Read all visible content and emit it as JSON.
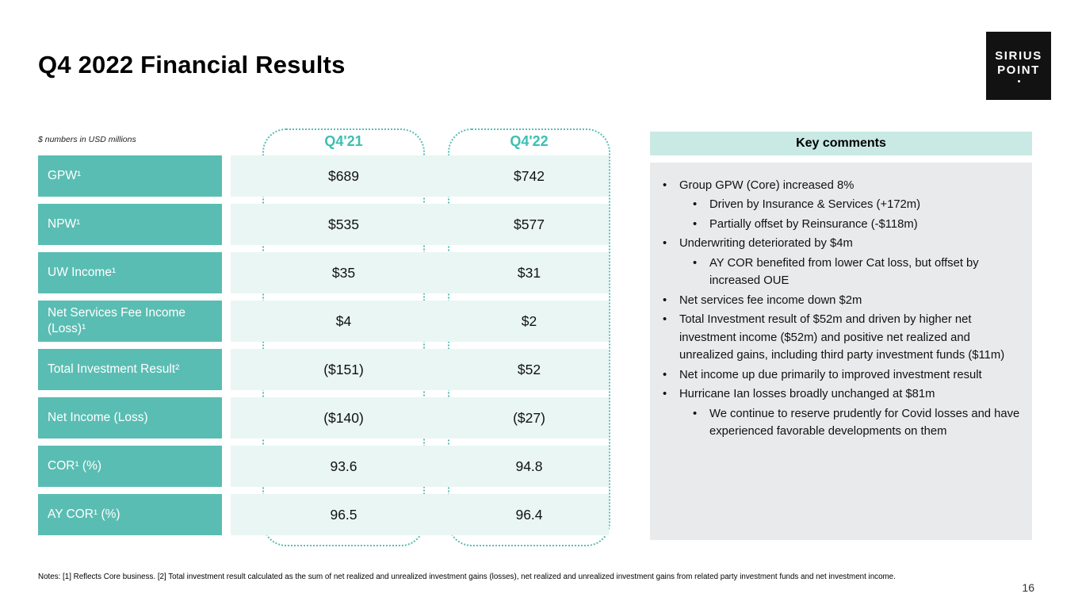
{
  "slide": {
    "title": "Q4 2022 Financial Results",
    "page_number": "16",
    "notes": "Notes: [1] Reflects Core business. [2] Total investment result calculated as the sum of net realized and unrealized investment gains (losses), net realized and unrealized investment gains from related party investment funds and net investment income."
  },
  "logo": {
    "line1": "SIRIUS",
    "line2": "POINT"
  },
  "colors": {
    "teal": "#5abdb3",
    "teal_text": "#3cbfb2",
    "mint": "#e9f6f4",
    "comments_header_bg": "#c8e9e4",
    "comments_panel_bg": "#e9eaeb",
    "logo_bg": "#121212"
  },
  "table": {
    "unit_note": "$ numbers in USD millions",
    "columns": [
      "Q4'21",
      "Q4'22"
    ],
    "rows": [
      {
        "label": "GPW¹",
        "values": [
          "$689",
          "$742"
        ]
      },
      {
        "label": "NPW¹",
        "values": [
          "$535",
          "$577"
        ]
      },
      {
        "label": "UW Income¹",
        "values": [
          "$35",
          "$31"
        ]
      },
      {
        "label": "Net Services Fee Income (Loss)¹",
        "values": [
          "$4",
          "$2"
        ]
      },
      {
        "label": "Total Investment Result²",
        "values": [
          "($151)",
          "$52"
        ]
      },
      {
        "label": "Net Income (Loss)",
        "values": [
          "($140)",
          "($27)"
        ]
      },
      {
        "label": "COR¹ (%)",
        "values": [
          "93.6",
          "94.8"
        ]
      },
      {
        "label": "AY COR¹ (%)",
        "values": [
          "96.5",
          "96.4"
        ]
      }
    ]
  },
  "key_comments": {
    "title": "Key comments",
    "bullet_glyph": "•",
    "items": [
      {
        "level": 1,
        "text": "Group GPW (Core) increased 8%"
      },
      {
        "level": 2,
        "text": "Driven by Insurance & Services (+172m)"
      },
      {
        "level": 2,
        "text": "Partially offset by Reinsurance (-$118m)"
      },
      {
        "level": 1,
        "text": "Underwriting deteriorated by $4m"
      },
      {
        "level": 2,
        "text": "AY COR benefited from lower Cat loss, but offset by increased OUE"
      },
      {
        "level": 1,
        "text": "Net services fee income down $2m"
      },
      {
        "level": 1,
        "text": "Total Investment result of $52m and driven by higher net investment income ($52m) and positive net realized and unrealized gains, including third party investment funds ($11m)"
      },
      {
        "level": 1,
        "text": "Net income up due primarily to improved investment result"
      },
      {
        "level": 1,
        "text": "Hurricane Ian losses broadly unchanged at $81m"
      },
      {
        "level": 2,
        "text": "We continue to reserve prudently for Covid losses and have experienced favorable developments on them"
      }
    ]
  }
}
